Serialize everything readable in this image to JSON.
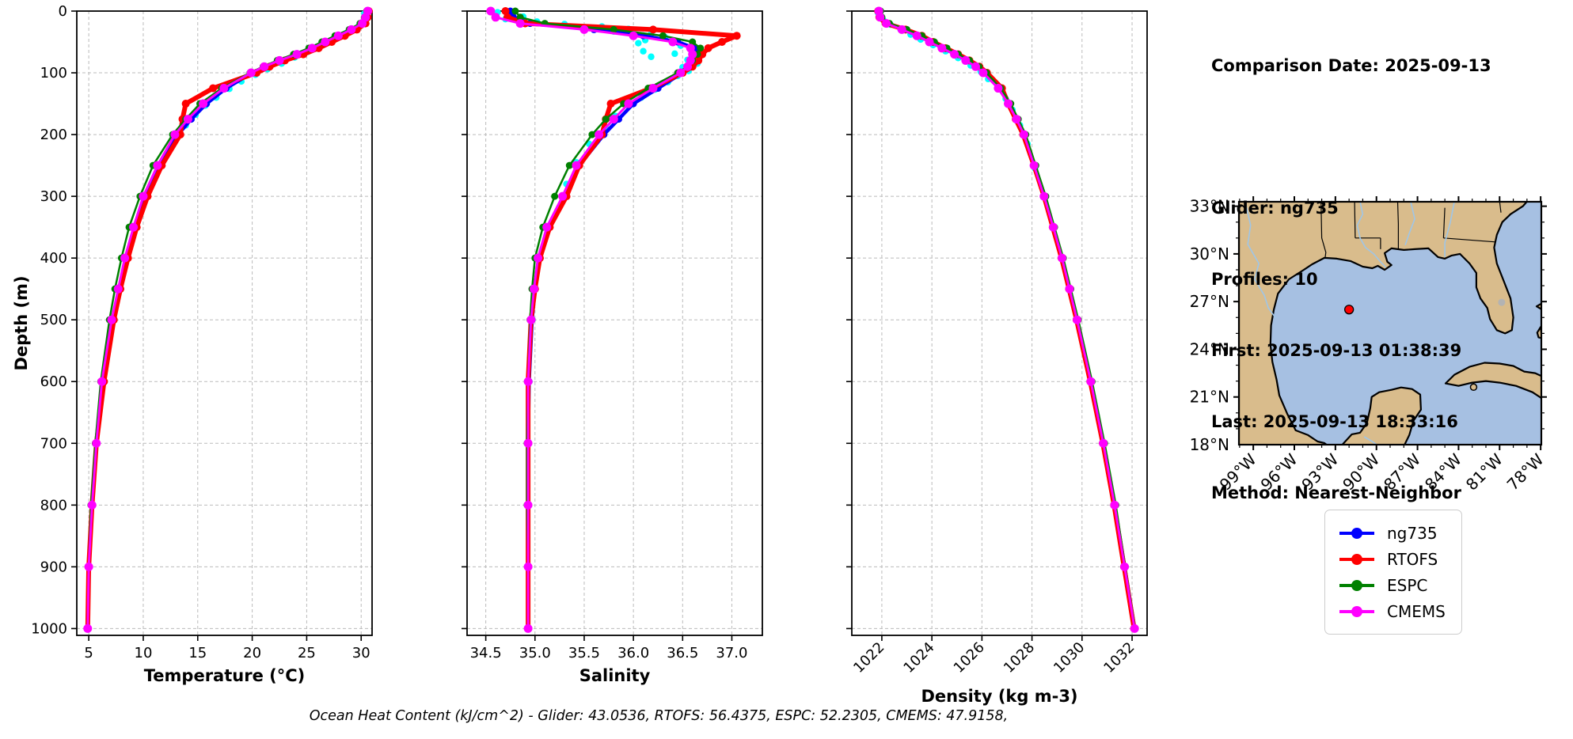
{
  "info": {
    "lines": [
      "Comparison Date: 2025-09-13",
      "",
      "Glider: ng735",
      "Profiles: 10",
      "First: 2025-09-13 01:38:39",
      "Last: 2025-09-13 18:33:16",
      "Method: Nearest-Neighbor"
    ]
  },
  "footer": {
    "ohc_text": "Ocean Heat Content (kJ/cm^2) - Glider: 43.0536,  RTOFS: 56.4375,  ESPC: 52.2305,  CMEMS: 47.9158,"
  },
  "legend": {
    "items": [
      {
        "label": "ng735",
        "color": "#0000ff"
      },
      {
        "label": "RTOFS",
        "color": "#ff0000"
      },
      {
        "label": "ESPC",
        "color": "#008000"
      },
      {
        "label": "CMEMS",
        "color": "#ff00ff"
      }
    ]
  },
  "map": {
    "lat_tick_labels": [
      "33°N",
      "30°N",
      "27°N",
      "24°N",
      "21°N",
      "18°N"
    ],
    "lat_tick_values": [
      33,
      30,
      27,
      24,
      21,
      18
    ],
    "lon_tick_labels": [
      "99°W",
      "96°W",
      "93°W",
      "90°W",
      "87°W",
      "84°W",
      "81°W",
      "78°W"
    ],
    "lon_tick_values": [
      99,
      96,
      93,
      90,
      87,
      84,
      81,
      78
    ],
    "land_color": "#d9bc8c",
    "ocean_color": "#a6c0e2",
    "river_color": "#9fc6e8",
    "marker": {
      "lon_w": 92.0,
      "lat_n": 26.5,
      "color": "#ff0000"
    }
  },
  "chart_data": {
    "type": "line",
    "ylabel": "Depth (m)",
    "ylim": [
      0,
      1011
    ],
    "yticks": [
      0,
      100,
      200,
      300,
      400,
      500,
      600,
      700,
      800,
      900,
      1000
    ],
    "grid": true,
    "series_order": [
      "ng735",
      "RTOFS",
      "ESPC",
      "CMEMS"
    ],
    "series_colors": {
      "ng735": "#0000ff",
      "RTOFS": "#ff0000",
      "ESPC": "#008000",
      "CMEMS": "#ff00ff"
    },
    "glider_raw_color": "#00ffff",
    "depth_m": [
      0,
      10,
      20,
      30,
      40,
      50,
      60,
      70,
      80,
      90,
      100,
      125,
      150,
      175,
      200,
      250,
      300,
      350,
      400,
      450,
      500,
      600,
      700,
      800,
      900,
      1000
    ],
    "panels": [
      {
        "name": "temperature",
        "xlabel": "Temperature (°C)",
        "xlim": [
          3.9,
          31.0
        ],
        "xticks": [
          5,
          10,
          15,
          20,
          25,
          30
        ],
        "xtick_labels": [
          "5",
          "10",
          "15",
          "20",
          "25",
          "30"
        ],
        "rotate_xtick_labels": false,
        "series": {
          "ng735": [
            30.6,
            30.5,
            30.2,
            29.3,
            28.1,
            27.0,
            25.8,
            24.3,
            22.6,
            21.2,
            20.0,
            17.6,
            15.8,
            14.4,
            13.2,
            11.6,
            10.3,
            9.3,
            8.5,
            7.8,
            7.2,
            6.3,
            5.7,
            5.3,
            5.0,
            4.9
          ],
          "RTOFS": [
            30.7,
            30.6,
            30.4,
            29.6,
            28.5,
            27.3,
            26.1,
            24.7,
            23.0,
            21.6,
            20.4,
            16.4,
            13.9,
            13.6,
            13.4,
            11.7,
            10.4,
            9.4,
            8.6,
            7.9,
            7.3,
            6.4,
            5.7,
            5.3,
            5.0,
            4.9
          ],
          "ESPC": [
            30.5,
            30.3,
            29.9,
            28.9,
            27.6,
            26.4,
            25.2,
            23.8,
            22.3,
            21.0,
            19.8,
            17.2,
            15.2,
            13.9,
            12.7,
            10.9,
            9.7,
            8.7,
            8.0,
            7.4,
            6.9,
            6.1,
            5.6,
            5.2,
            5.0,
            4.9
          ],
          "CMEMS": [
            30.6,
            30.4,
            30.1,
            29.1,
            27.9,
            26.7,
            25.5,
            24.1,
            22.5,
            21.1,
            19.9,
            17.4,
            15.5,
            14.1,
            12.9,
            11.3,
            10.0,
            9.1,
            8.3,
            7.7,
            7.1,
            6.2,
            5.7,
            5.3,
            5.0,
            4.9
          ]
        },
        "glider_raw_scatter": [
          [
            30.3,
            4
          ],
          [
            30.6,
            8
          ],
          [
            30.5,
            12
          ],
          [
            30.2,
            18
          ],
          [
            29.8,
            24
          ],
          [
            29.2,
            30
          ],
          [
            28.6,
            36
          ],
          [
            27.9,
            43
          ],
          [
            27.1,
            50
          ],
          [
            26.2,
            58
          ],
          [
            25.1,
            66
          ],
          [
            23.9,
            75
          ],
          [
            22.7,
            85
          ],
          [
            21.4,
            94
          ],
          [
            20.3,
            103
          ],
          [
            19.0,
            114
          ],
          [
            17.9,
            126
          ],
          [
            16.7,
            140
          ],
          [
            15.7,
            153
          ],
          [
            14.8,
            168
          ],
          [
            13.9,
            185
          ],
          [
            13.1,
            202
          ],
          [
            12.1,
            235
          ],
          [
            11.0,
            272
          ],
          [
            10.1,
            305
          ]
        ]
      },
      {
        "name": "salinity",
        "xlabel": "Salinity",
        "xlim": [
          34.31,
          37.31
        ],
        "xticks": [
          34.5,
          35.0,
          35.5,
          36.0,
          36.5,
          37.0
        ],
        "xtick_labels": [
          "34.5",
          "35.0",
          "35.5",
          "36.0",
          "36.5",
          "37.0"
        ],
        "rotate_xtick_labels": false,
        "series": {
          "ng735": [
            34.75,
            34.78,
            34.95,
            35.6,
            36.1,
            36.45,
            36.62,
            36.66,
            36.62,
            36.58,
            36.5,
            36.25,
            36.0,
            35.85,
            35.7,
            35.45,
            35.3,
            35.15,
            35.05,
            35.0,
            34.97,
            34.94,
            34.93,
            34.93,
            34.93,
            34.93
          ],
          "RTOFS": [
            34.7,
            34.72,
            34.9,
            36.2,
            37.05,
            36.9,
            36.76,
            36.7,
            36.66,
            36.6,
            36.5,
            36.18,
            35.77,
            35.72,
            35.68,
            35.45,
            35.32,
            35.15,
            35.05,
            35.0,
            34.96,
            34.93,
            34.93,
            34.93,
            34.93,
            34.93
          ],
          "ESPC": [
            34.8,
            34.85,
            35.1,
            35.8,
            36.3,
            36.6,
            36.68,
            36.65,
            36.6,
            36.55,
            36.45,
            36.15,
            35.9,
            35.72,
            35.58,
            35.35,
            35.2,
            35.08,
            35.0,
            34.97,
            34.95,
            34.93,
            34.92,
            34.92,
            34.93,
            34.93
          ],
          "CMEMS": [
            34.55,
            34.6,
            34.85,
            35.5,
            36.0,
            36.4,
            36.58,
            36.6,
            36.58,
            36.55,
            36.48,
            36.2,
            35.95,
            35.8,
            35.65,
            35.42,
            35.28,
            35.12,
            35.03,
            34.99,
            34.96,
            34.93,
            34.93,
            34.93,
            34.93,
            34.93
          ]
        },
        "glider_raw_scatter": [
          [
            34.62,
            2
          ],
          [
            34.72,
            5
          ],
          [
            34.88,
            9
          ],
          [
            34.7,
            13
          ],
          [
            35.02,
            17
          ],
          [
            35.3,
            21
          ],
          [
            35.68,
            25
          ],
          [
            35.95,
            29
          ],
          [
            35.8,
            33
          ],
          [
            36.18,
            37
          ],
          [
            36.32,
            42
          ],
          [
            36.12,
            47
          ],
          [
            36.05,
            52
          ],
          [
            36.48,
            56
          ],
          [
            36.6,
            61
          ],
          [
            36.1,
            65
          ],
          [
            36.42,
            69
          ],
          [
            36.18,
            74
          ],
          [
            36.55,
            79
          ],
          [
            36.65,
            85
          ],
          [
            36.5,
            91
          ],
          [
            36.56,
            97
          ],
          [
            36.45,
            105
          ],
          [
            36.35,
            115
          ],
          [
            36.22,
            127
          ],
          [
            36.08,
            140
          ],
          [
            35.95,
            153
          ],
          [
            35.82,
            170
          ],
          [
            35.72,
            190
          ],
          [
            35.55,
            215
          ],
          [
            35.42,
            245
          ],
          [
            35.32,
            280
          ]
        ]
      },
      {
        "name": "density",
        "xlabel": "Density (kg m-3)",
        "xlim": [
          1020.8,
          1032.6
        ],
        "xticks": [
          1022,
          1024,
          1026,
          1028,
          1030,
          1032
        ],
        "xtick_labels": [
          "1022",
          "1024",
          "1026",
          "1028",
          "1030",
          "1032"
        ],
        "rotate_xtick_labels": true,
        "series": {
          "ng735": [
            1021.9,
            1021.95,
            1022.2,
            1022.85,
            1023.45,
            1023.95,
            1024.45,
            1024.95,
            1025.4,
            1025.8,
            1026.1,
            1026.7,
            1027.1,
            1027.4,
            1027.7,
            1028.1,
            1028.5,
            1028.85,
            1029.2,
            1029.5,
            1029.8,
            1030.35,
            1030.85,
            1031.3,
            1031.7,
            1032.1
          ],
          "RTOFS": [
            1021.85,
            1021.9,
            1022.15,
            1022.95,
            1023.6,
            1024.05,
            1024.55,
            1025.05,
            1025.5,
            1025.9,
            1026.2,
            1026.8,
            1027.05,
            1027.35,
            1027.65,
            1028.08,
            1028.48,
            1028.83,
            1029.18,
            1029.48,
            1029.78,
            1030.33,
            1030.83,
            1031.28,
            1031.68,
            1032.08
          ],
          "ESPC": [
            1021.95,
            1022.0,
            1022.3,
            1023.0,
            1023.6,
            1024.1,
            1024.6,
            1025.05,
            1025.5,
            1025.88,
            1026.18,
            1026.75,
            1027.15,
            1027.45,
            1027.75,
            1028.15,
            1028.55,
            1028.9,
            1029.25,
            1029.55,
            1029.85,
            1030.4,
            1030.9,
            1031.35,
            1031.72,
            1032.12
          ],
          "CMEMS": [
            1021.88,
            1021.93,
            1022.18,
            1022.8,
            1023.4,
            1023.9,
            1024.4,
            1024.9,
            1025.35,
            1025.75,
            1026.05,
            1026.65,
            1027.05,
            1027.38,
            1027.68,
            1028.08,
            1028.48,
            1028.85,
            1029.2,
            1029.5,
            1029.8,
            1030.35,
            1030.85,
            1031.3,
            1031.7,
            1032.1
          ]
        },
        "glider_raw_scatter": [
          [
            1021.85,
            3
          ],
          [
            1021.92,
            8
          ],
          [
            1022.05,
            14
          ],
          [
            1022.35,
            22
          ],
          [
            1022.75,
            30
          ],
          [
            1023.15,
            38
          ],
          [
            1023.55,
            46
          ],
          [
            1024.05,
            55
          ],
          [
            1024.55,
            65
          ],
          [
            1025.05,
            76
          ],
          [
            1025.55,
            88
          ],
          [
            1025.95,
            98
          ],
          [
            1026.25,
            110
          ],
          [
            1026.62,
            125
          ],
          [
            1026.95,
            142
          ],
          [
            1027.22,
            160
          ],
          [
            1027.52,
            185
          ],
          [
            1027.82,
            215
          ],
          [
            1028.12,
            255
          ],
          [
            1028.48,
            300
          ]
        ]
      }
    ]
  }
}
